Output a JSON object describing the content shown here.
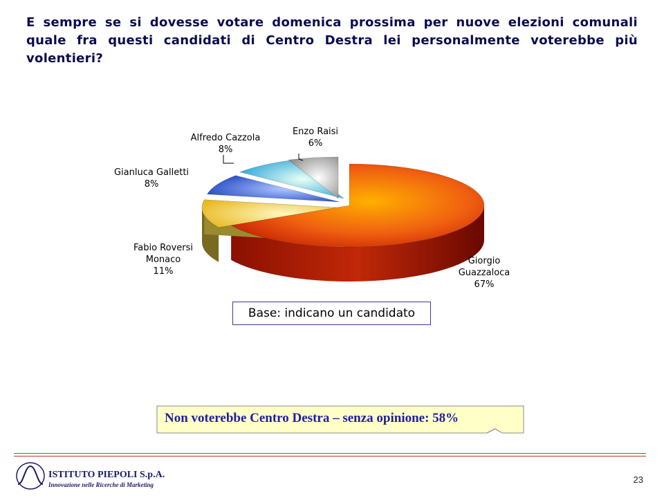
{
  "title": "E sempre se si dovesse votare domenica prossima per nuove elezioni comunali quale fra questi candidati di Centro Destra lei personalmente voterebbe più volentieri?",
  "chart_data": {
    "type": "pie",
    "style": "3d-exploded",
    "slices": [
      {
        "name_lines": [
          "Giorgio",
          "Guazzaloca"
        ],
        "value": 67,
        "label": "67%",
        "color": "#f07010"
      },
      {
        "name_lines": [
          "Fabio Roversi",
          "Monaco"
        ],
        "value": 11,
        "label": "11%",
        "color": "#f5d040"
      },
      {
        "name_lines": [
          "Gianluca Galletti"
        ],
        "value": 8,
        "label": "8%",
        "color": "#2a5ae0"
      },
      {
        "name_lines": [
          "Alfredo Cazzola"
        ],
        "value": 8,
        "label": "8%",
        "color": "#30b0d8"
      },
      {
        "name_lines": [
          "Enzo Raisi"
        ],
        "value": 6,
        "label": "6%",
        "color": "#b0b0b0"
      }
    ]
  },
  "base_note": "Base: indicano un candidato",
  "callout": "Non voterebbe Centro Destra – senza opinione: 58%",
  "footer": {
    "logo_name": "ISTITUTO PIEPOLI S.p.A.",
    "logo_tagline": "Innovazione nelle Ricerche di Marketing",
    "page_number": "23"
  }
}
